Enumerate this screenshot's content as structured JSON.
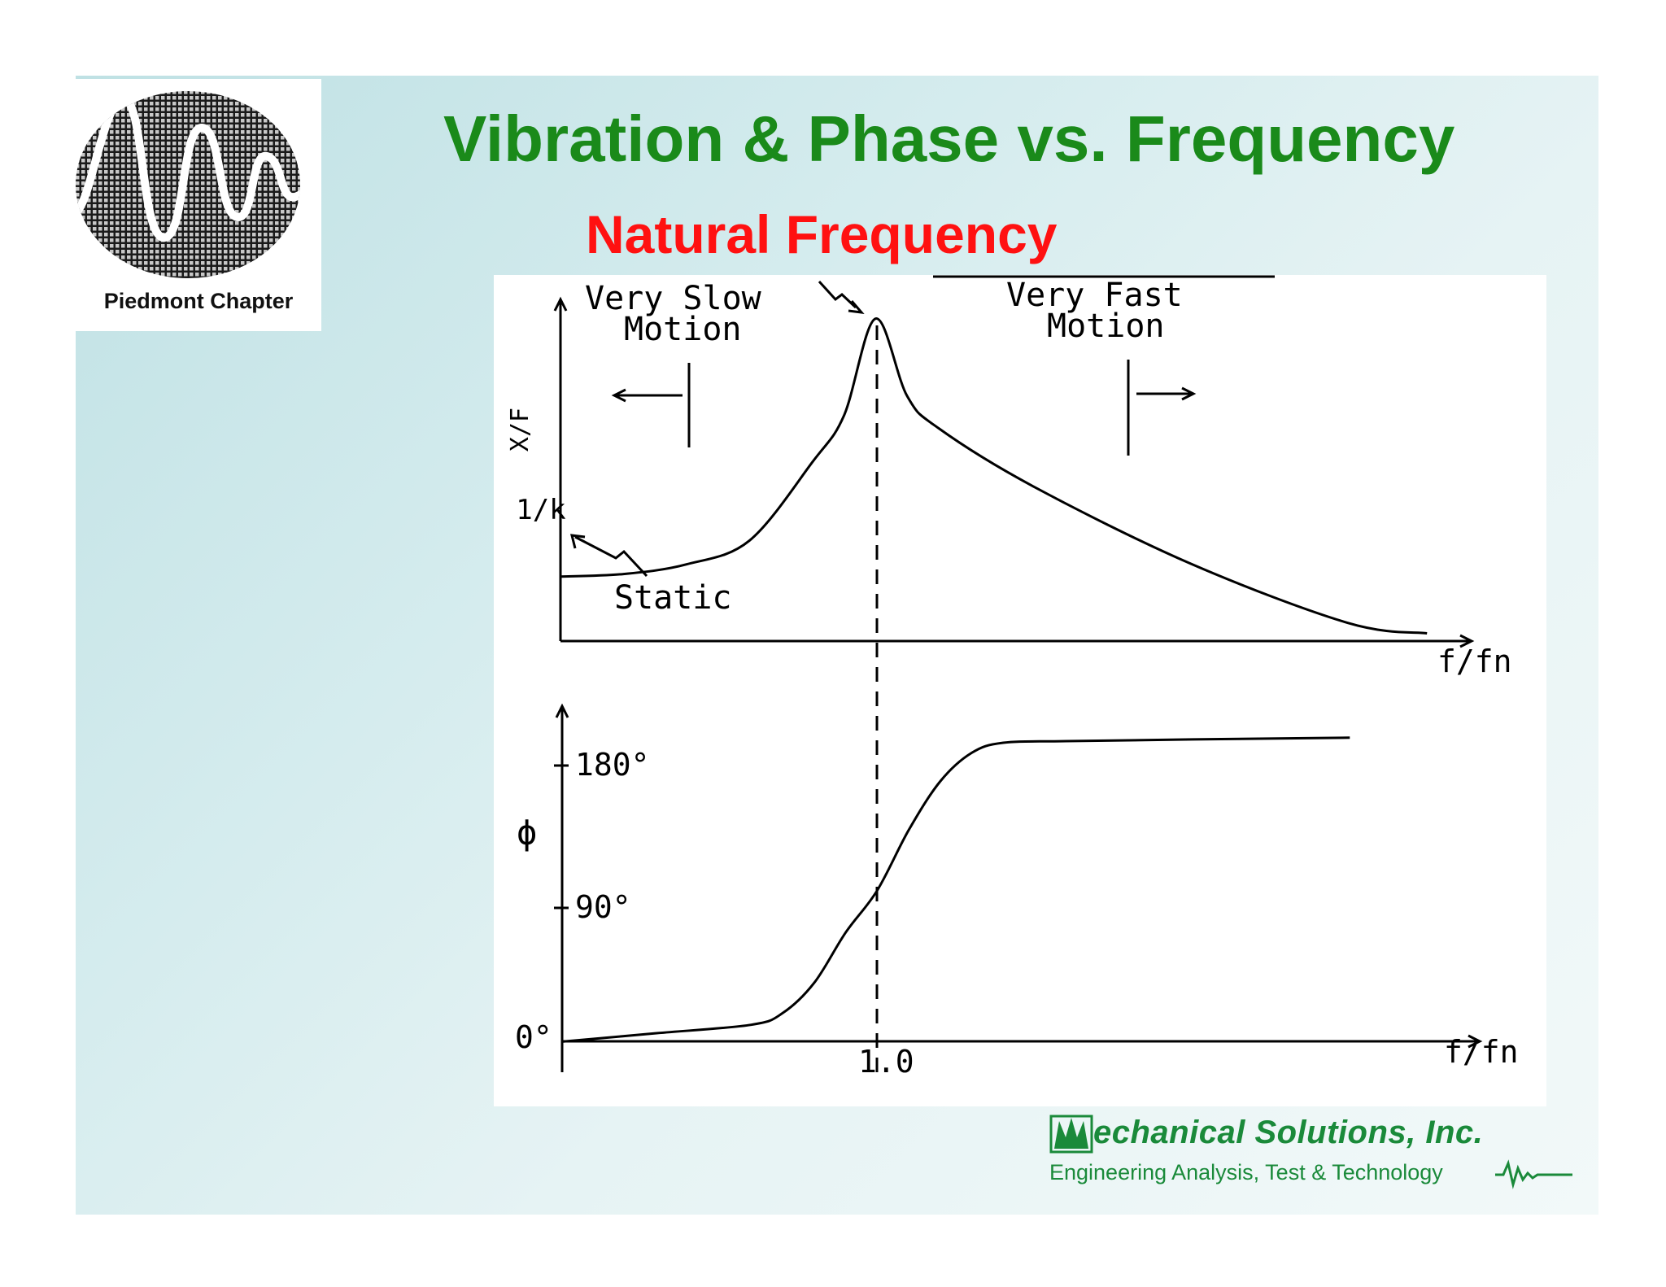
{
  "slide": {
    "title": "Vibration & Phase vs. Frequency",
    "subtitle": "Natural Frequency",
    "logo": {
      "label": "Piedmont Chapter"
    },
    "footer": {
      "company": "echanical Solutions, Inc.",
      "tagline": "Engineering Analysis, Test & Technology"
    },
    "colors": {
      "title": "#1a8a1a",
      "subtitle": "#ff1111",
      "company": "#1a8a3a"
    }
  },
  "chart_data": [
    {
      "type": "line",
      "ylabel": "X/F",
      "xlabel": "f/fn",
      "y_tick_labels": [
        "1/k"
      ],
      "annotations": [
        "Very Slow Motion",
        "Very Fast Motion",
        "Static"
      ],
      "x": [
        0.0,
        0.2,
        0.4,
        0.6,
        0.8,
        0.9,
        1.0,
        1.1,
        1.2,
        1.5,
        2.0,
        2.5,
        2.75
      ],
      "y": [
        1.0,
        1.04,
        1.19,
        1.56,
        2.78,
        3.5,
        5.0,
        3.8,
        3.3,
        2.4,
        1.2,
        0.28,
        0.12
      ],
      "y_units": "multiples of 1/k",
      "xlim": [
        0,
        3.0
      ],
      "ylim": [
        0,
        5.4
      ],
      "grid": false
    },
    {
      "type": "line",
      "ylabel": "ϕ",
      "xlabel": "f/fn",
      "x_tick_labels": [
        "1.0"
      ],
      "y_tick_labels": [
        "0°",
        "90°",
        "180°"
      ],
      "x": [
        0.0,
        0.3,
        0.6,
        0.7,
        0.8,
        0.9,
        1.0,
        1.1,
        1.2,
        1.3,
        1.4,
        1.6,
        2.0,
        2.5
      ],
      "y": [
        0,
        5,
        10,
        17,
        35,
        65,
        90,
        126,
        155,
        172,
        178,
        179,
        180,
        181
      ],
      "xlim": [
        0,
        3.0
      ],
      "ylim": [
        -10,
        210
      ],
      "grid": false
    }
  ]
}
